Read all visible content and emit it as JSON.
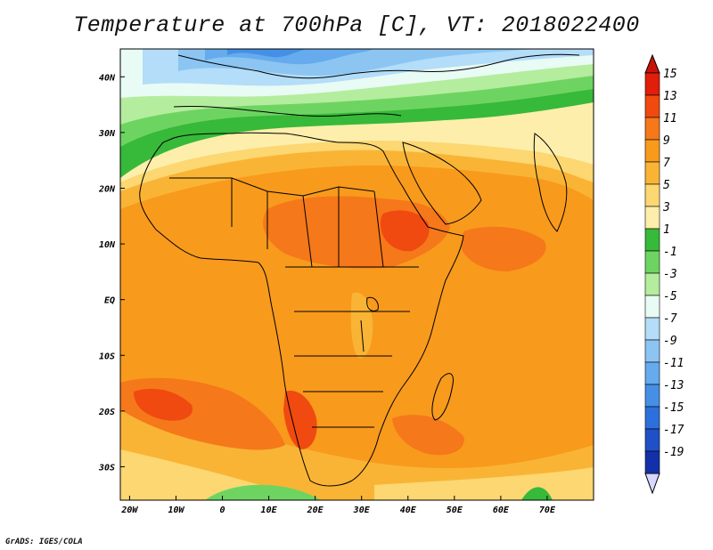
{
  "title": "Temperature at 700hPa [C], VT: 2018022400",
  "credit": "GrADS: IGES/COLA",
  "map": {
    "lon_range": [
      -22,
      80
    ],
    "lat_range": [
      -36,
      45
    ],
    "lat_ticks": [
      {
        "label": "40N",
        "value": 40
      },
      {
        "label": "30N",
        "value": 30
      },
      {
        "label": "20N",
        "value": 20
      },
      {
        "label": "10N",
        "value": 10
      },
      {
        "label": "EQ",
        "value": 0
      },
      {
        "label": "10S",
        "value": -10
      },
      {
        "label": "20S",
        "value": -20
      },
      {
        "label": "30S",
        "value": -30
      }
    ],
    "lon_ticks": [
      {
        "label": "20W",
        "value": -20
      },
      {
        "label": "10W",
        "value": -10
      },
      {
        "label": "0",
        "value": 0
      },
      {
        "label": "10E",
        "value": 10
      },
      {
        "label": "20E",
        "value": 20
      },
      {
        "label": "30E",
        "value": 30
      },
      {
        "label": "40E",
        "value": 40
      },
      {
        "label": "50E",
        "value": 50
      },
      {
        "label": "60E",
        "value": 60
      },
      {
        "label": "70E",
        "value": 70
      }
    ]
  },
  "colorbar": {
    "levels": [
      {
        "label": "15",
        "color": "#e01e0a"
      },
      {
        "label": "13",
        "color": "#f04a10"
      },
      {
        "label": "11",
        "color": "#f5781a"
      },
      {
        "label": "9",
        "color": "#f89a1c"
      },
      {
        "label": "7",
        "color": "#fab435"
      },
      {
        "label": "5",
        "color": "#fcd772"
      },
      {
        "label": "3",
        "color": "#fdeeab"
      },
      {
        "label": "1",
        "color": "#37b93a"
      },
      {
        "label": "-1",
        "color": "#6ed461"
      },
      {
        "label": "-3",
        "color": "#b4ed9e"
      },
      {
        "label": "-5",
        "color": "#e8fbf4"
      },
      {
        "label": "-7",
        "color": "#b3ddf8"
      },
      {
        "label": "-9",
        "color": "#8cc5f2"
      },
      {
        "label": "-11",
        "color": "#65abee"
      },
      {
        "label": "-13",
        "color": "#4590e6"
      },
      {
        "label": "-15",
        "color": "#2d70dc"
      },
      {
        "label": "-17",
        "color": "#1f50c8"
      },
      {
        "label": "-19",
        "color": "#1430a8"
      }
    ],
    "over_color": "#c81408",
    "under_color": "#d8d8ff"
  },
  "colors": {
    "cold_blue": "#6fa6ec",
    "light_blue": "#b3ddf8",
    "pale": "#e8fbf4",
    "green": "#37b93a",
    "light_green": "#6ed461",
    "cream": "#fdeeab",
    "yellow": "#fcd772",
    "orange_light": "#fab435",
    "orange": "#f89a1c",
    "orange_dark": "#f5781a",
    "red_orange": "#f04a10"
  }
}
